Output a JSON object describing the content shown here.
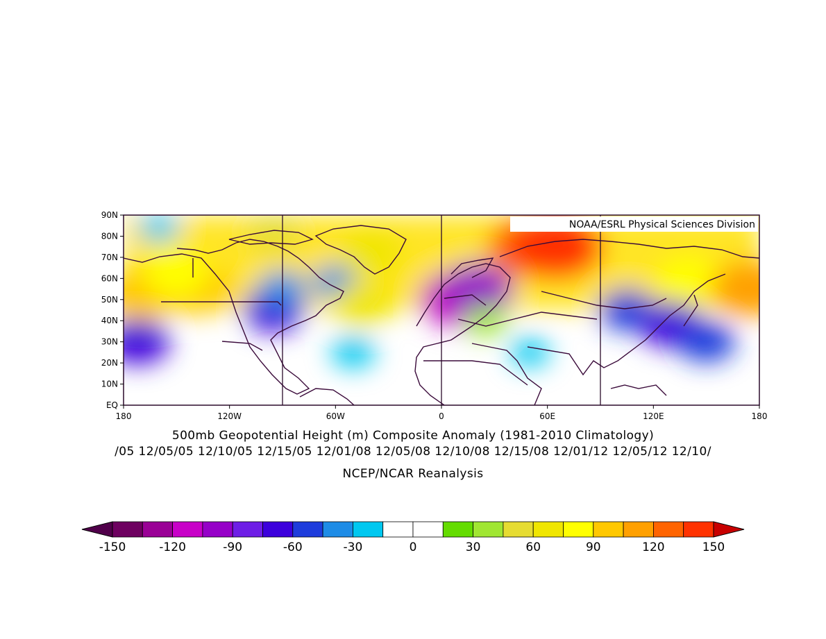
{
  "map": {
    "lat_labels": [
      "90N",
      "80N",
      "70N",
      "60N",
      "50N",
      "40N",
      "30N",
      "20N",
      "10N",
      "EQ"
    ],
    "lon_labels": [
      "180",
      "120W",
      "60W",
      "0",
      "60E",
      "120E",
      "180"
    ],
    "lat_range": [
      0,
      90
    ],
    "lon_range": [
      -180,
      180
    ],
    "credit": "NOAA/ESRL Physical Sciences Division",
    "anomaly_field": [
      {
        "lon": -160,
        "lat": 84,
        "value": -20
      },
      {
        "lon": -95,
        "lat": 82,
        "value": 50
      },
      {
        "lon": -40,
        "lat": 72,
        "value": 70
      },
      {
        "lon": 50,
        "lat": 75,
        "value": 120
      },
      {
        "lon": 65,
        "lat": 75,
        "value": 140
      },
      {
        "lon": -170,
        "lat": 52,
        "value": 100
      },
      {
        "lon": -140,
        "lat": 55,
        "value": 95
      },
      {
        "lon": -150,
        "lat": 62,
        "value": 80
      },
      {
        "lon": -95,
        "lat": 45,
        "value": -70
      },
      {
        "lon": -90,
        "lat": 55,
        "value": -40
      },
      {
        "lon": -60,
        "lat": 58,
        "value": -35
      },
      {
        "lon": -45,
        "lat": 48,
        "value": 70
      },
      {
        "lon": -50,
        "lat": 25,
        "value": -30
      },
      {
        "lon": -172,
        "lat": 30,
        "value": -75
      },
      {
        "lon": 10,
        "lat": 50,
        "value": -110
      },
      {
        "lon": 20,
        "lat": 55,
        "value": -95
      },
      {
        "lon": 25,
        "lat": 40,
        "value": 30
      },
      {
        "lon": 50,
        "lat": 25,
        "value": -20
      },
      {
        "lon": 105,
        "lat": 45,
        "value": -60
      },
      {
        "lon": 130,
        "lat": 38,
        "value": -75
      },
      {
        "lon": 150,
        "lat": 30,
        "value": -60
      },
      {
        "lon": 140,
        "lat": 60,
        "value": 75
      },
      {
        "lon": 175,
        "lat": 55,
        "value": 110
      }
    ]
  },
  "titles": {
    "line1": "500mb Geopotential Height (m) Composite Anomaly (1981-2010 Climatology)",
    "line2": "/05 12/05/05 12/10/05 12/15/05 12/01/08 12/05/08 12/10/08 12/15/08 12/01/12 12/05/12 12/10/",
    "line3": "NCEP/NCAR Reanalysis"
  },
  "colorbar": {
    "labels": [
      "-150",
      "-120",
      "-90",
      "-60",
      "-30",
      "0",
      "30",
      "60",
      "90",
      "120",
      "150"
    ],
    "colors": [
      "#6e0060",
      "#9a0096",
      "#c800c8",
      "#9600c8",
      "#6e1ee6",
      "#3c00dc",
      "#1e3cdc",
      "#1e8ce6",
      "#00c8f0",
      "#ffffff",
      "#ffffff",
      "#64dc00",
      "#a0e632",
      "#e6dc32",
      "#f0e600",
      "#ffff00",
      "#ffc800",
      "#ffa000",
      "#ff6400",
      "#ff3200"
    ],
    "under_color": "#50004a",
    "over_color": "#c80000"
  }
}
